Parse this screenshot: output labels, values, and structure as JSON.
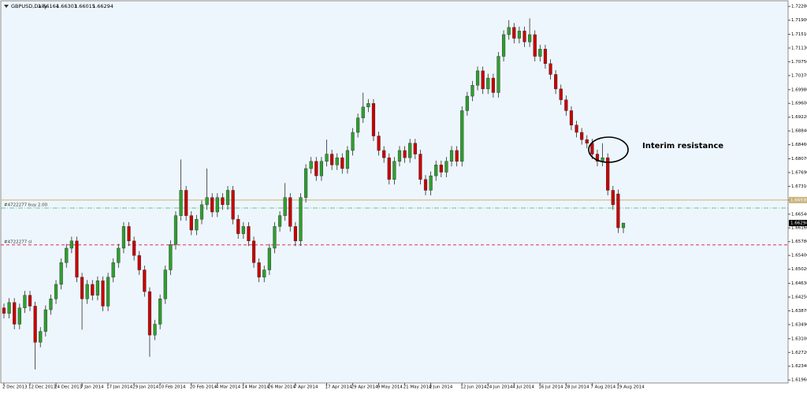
{
  "chart_data": {
    "type": "candlestick",
    "title": "GBPUSD,Daily",
    "annotation": "Interim resistance",
    "up_color": "#2f9e2f",
    "down_color": "#c80000",
    "categories": [
      "2 Dec 2013",
      null,
      null,
      null,
      null,
      "12 Dec 2013",
      null,
      null,
      null,
      null,
      "24 Dec 2013",
      null,
      null,
      null,
      null,
      "7 Jan 2014",
      null,
      null,
      null,
      null,
      "17 Jan 2014",
      null,
      null,
      null,
      null,
      "29 Jan 2014",
      null,
      null,
      null,
      null,
      "10 Feb 2014",
      null,
      null,
      null,
      null,
      null,
      "20 Feb 2014",
      null,
      null,
      null,
      null,
      "4 Mar 2014",
      null,
      null,
      null,
      null,
      "14 Mar 2014",
      null,
      null,
      null,
      null,
      "26 Mar 2014",
      null,
      null,
      null,
      null,
      "7 Apr 2014",
      null,
      null,
      null,
      null,
      null,
      "17 Apr 2014",
      null,
      null,
      null,
      null,
      "29 Apr 2014",
      null,
      null,
      null,
      null,
      "9 May 2014",
      null,
      null,
      null,
      null,
      "21 May 2014",
      null,
      null,
      null,
      null,
      "2 Jun 2014",
      null,
      null,
      null,
      null,
      null,
      "12 Jun 2014",
      null,
      null,
      null,
      null,
      "24 Jun 2014",
      null,
      null,
      null,
      null,
      "4 Jul 2014",
      null,
      null,
      null,
      null,
      "16 Jul 2014",
      null,
      null,
      null,
      null,
      "28 Jul 2014",
      null,
      null,
      null,
      null,
      "7 Aug 2014",
      null,
      null,
      null,
      null,
      "19 Aug 2014",
      null
    ],
    "open": [
      1.6395,
      1.638,
      1.641,
      1.635,
      1.6395,
      1.643,
      1.64,
      1.63,
      1.633,
      1.639,
      1.642,
      1.646,
      1.652,
      1.656,
      1.658,
      1.648,
      1.642,
      1.646,
      1.643,
      1.647,
      1.64,
      1.648,
      1.652,
      1.656,
      1.662,
      1.658,
      1.654,
      1.65,
      1.644,
      1.632,
      1.635,
      1.642,
      1.65,
      1.657,
      1.665,
      1.672,
      1.665,
      1.661,
      1.664,
      1.668,
      1.67,
      1.666,
      1.67,
      1.668,
      1.672,
      1.664,
      1.66,
      1.662,
      1.658,
      1.652,
      1.648,
      1.65,
      1.656,
      1.662,
      1.665,
      1.67,
      1.662,
      1.658,
      1.67,
      1.678,
      1.68,
      1.676,
      1.68,
      1.682,
      1.679,
      1.681,
      1.678,
      1.683,
      1.688,
      1.692,
      1.695,
      1.696,
      1.687,
      1.683,
      1.681,
      1.675,
      1.68,
      1.683,
      1.681,
      1.685,
      1.682,
      1.675,
      1.672,
      1.676,
      1.679,
      1.677,
      1.68,
      1.683,
      1.68,
      1.694,
      1.698,
      1.701,
      1.705,
      1.7,
      1.703,
      1.699,
      1.709,
      1.715,
      1.717,
      1.714,
      1.716,
      1.713,
      1.715,
      1.709,
      1.711,
      1.707,
      1.704,
      1.7,
      1.697,
      1.694,
      1.69,
      1.688,
      1.686,
      1.685,
      1.682,
      1.68,
      1.681,
      1.672,
      1.671,
      1.66164
    ],
    "high": [
      1.6407,
      1.6422,
      1.6422,
      1.6407,
      1.6442,
      1.6442,
      1.6412,
      1.6342,
      1.6402,
      1.6432,
      1.6472,
      1.6532,
      1.6572,
      1.6592,
      1.6592,
      1.6492,
      1.6472,
      1.6472,
      1.6482,
      1.6482,
      1.6492,
      1.6532,
      1.6572,
      1.6632,
      1.6632,
      1.6592,
      1.6552,
      1.6512,
      1.6452,
      1.6362,
      1.6432,
      1.6512,
      1.6582,
      1.6662,
      1.6805,
      1.6732,
      1.6662,
      1.6652,
      1.6692,
      1.678,
      1.6712,
      1.6712,
      1.6712,
      1.6732,
      1.6732,
      1.6652,
      1.6632,
      1.6632,
      1.6592,
      1.6532,
      1.6512,
      1.6572,
      1.6632,
      1.6662,
      1.674,
      1.6712,
      1.6632,
      1.6712,
      1.6792,
      1.6812,
      1.6812,
      1.6812,
      1.686,
      1.6832,
      1.6822,
      1.6822,
      1.6842,
      1.6892,
      1.6932,
      1.699,
      1.6972,
      1.6972,
      1.6882,
      1.6842,
      1.6822,
      1.6812,
      1.6842,
      1.6842,
      1.6862,
      1.6862,
      1.6832,
      1.6762,
      1.6772,
      1.6802,
      1.6802,
      1.6812,
      1.6842,
      1.6842,
      1.6952,
      1.6992,
      1.7022,
      1.7062,
      1.7062,
      1.7042,
      1.7042,
      1.7102,
      1.7162,
      1.719,
      1.7182,
      1.7172,
      1.7172,
      1.7195,
      1.7162,
      1.7122,
      1.7122,
      1.7082,
      1.7052,
      1.7012,
      1.6982,
      1.6952,
      1.6912,
      1.6892,
      1.6872,
      1.6862,
      1.6832,
      1.685,
      1.6822,
      1.6732,
      1.6722,
      1.66303
    ],
    "low": [
      1.6366,
      1.6366,
      1.6336,
      1.6336,
      1.6381,
      1.6386,
      1.6225,
      1.6286,
      1.6316,
      1.6376,
      1.6406,
      1.6446,
      1.6506,
      1.6546,
      1.6466,
      1.6335,
      1.6406,
      1.6416,
      1.6416,
      1.6386,
      1.6386,
      1.6466,
      1.6506,
      1.6546,
      1.6566,
      1.6526,
      1.6486,
      1.6426,
      1.626,
      1.6306,
      1.6336,
      1.6406,
      1.6486,
      1.6556,
      1.6636,
      1.6636,
      1.6596,
      1.6596,
      1.6626,
      1.6666,
      1.6646,
      1.6646,
      1.6666,
      1.6666,
      1.6626,
      1.6586,
      1.6586,
      1.6566,
      1.6506,
      1.6466,
      1.6466,
      1.6486,
      1.6546,
      1.6606,
      1.6636,
      1.6606,
      1.6566,
      1.6566,
      1.6686,
      1.6766,
      1.6746,
      1.6746,
      1.6786,
      1.6776,
      1.6776,
      1.6766,
      1.6766,
      1.6816,
      1.6866,
      1.6906,
      1.6936,
      1.6856,
      1.6816,
      1.6796,
      1.6736,
      1.6736,
      1.6786,
      1.6796,
      1.6796,
      1.6806,
      1.6736,
      1.6706,
      1.6706,
      1.6746,
      1.6756,
      1.6756,
      1.6786,
      1.6786,
      1.6786,
      1.6926,
      1.6966,
      1.6996,
      1.6986,
      1.6986,
      1.6976,
      1.6976,
      1.7076,
      1.7136,
      1.7126,
      1.7126,
      1.7116,
      1.7116,
      1.7076,
      1.7076,
      1.7056,
      1.7026,
      1.6986,
      1.6956,
      1.6926,
      1.6886,
      1.6866,
      1.6846,
      1.6836,
      1.6806,
      1.6786,
      1.6786,
      1.6706,
      1.6666,
      1.6602,
      1.66015
    ],
    "close": [
      1.638,
      1.641,
      1.635,
      1.6395,
      1.643,
      1.64,
      1.63,
      1.633,
      1.639,
      1.642,
      1.646,
      1.652,
      1.656,
      1.658,
      1.648,
      1.642,
      1.646,
      1.643,
      1.647,
      1.64,
      1.648,
      1.652,
      1.656,
      1.662,
      1.658,
      1.654,
      1.65,
      1.644,
      1.632,
      1.635,
      1.642,
      1.65,
      1.657,
      1.665,
      1.672,
      1.665,
      1.661,
      1.664,
      1.668,
      1.67,
      1.666,
      1.67,
      1.668,
      1.672,
      1.664,
      1.66,
      1.662,
      1.658,
      1.652,
      1.648,
      1.65,
      1.656,
      1.662,
      1.665,
      1.67,
      1.662,
      1.658,
      1.67,
      1.678,
      1.68,
      1.676,
      1.68,
      1.682,
      1.679,
      1.681,
      1.678,
      1.683,
      1.688,
      1.692,
      1.695,
      1.696,
      1.687,
      1.683,
      1.681,
      1.675,
      1.68,
      1.683,
      1.681,
      1.685,
      1.682,
      1.675,
      1.672,
      1.676,
      1.679,
      1.677,
      1.68,
      1.683,
      1.68,
      1.694,
      1.698,
      1.701,
      1.705,
      1.7,
      1.703,
      1.699,
      1.709,
      1.715,
      1.717,
      1.714,
      1.716,
      1.713,
      1.715,
      1.709,
      1.711,
      1.707,
      1.704,
      1.7,
      1.697,
      1.694,
      1.69,
      1.688,
      1.686,
      1.685,
      1.682,
      1.68,
      1.681,
      1.672,
      1.668,
      1.66164,
      1.66294
    ],
    "ylim": [
      1.6192,
      1.7237
    ],
    "yticks": [
      {
        "value": 1.7228,
        "label": "1.72280"
      },
      {
        "value": 1.719,
        "label": "1.71900"
      },
      {
        "value": 1.7151,
        "label": "1.71510"
      },
      {
        "value": 1.7113,
        "label": "1.71130"
      },
      {
        "value": 1.7075,
        "label": "1.70750"
      },
      {
        "value": 1.7037,
        "label": "1.70370"
      },
      {
        "value": 1.6998,
        "label": "1.69980"
      },
      {
        "value": 1.696,
        "label": "1.69600"
      },
      {
        "value": 1.6922,
        "label": "1.69220"
      },
      {
        "value": 1.6884,
        "label": "1.68840"
      },
      {
        "value": 1.6846,
        "label": "1.68460"
      },
      {
        "value": 1.6807,
        "label": "1.68070"
      },
      {
        "value": 1.6769,
        "label": "1.67690"
      },
      {
        "value": 1.6731,
        "label": "1.67310"
      },
      {
        "value": 1.6693,
        "label": "1.66930"
      },
      {
        "value": 1.6654,
        "label": "1.66540"
      },
      {
        "value": 1.6616,
        "label": "1.66160"
      },
      {
        "value": 1.6578,
        "label": "1.65780"
      },
      {
        "value": 1.654,
        "label": "1.65400"
      },
      {
        "value": 1.6502,
        "label": "1.65020"
      },
      {
        "value": 1.6463,
        "label": "1.64630"
      },
      {
        "value": 1.6425,
        "label": "1.64250"
      },
      {
        "value": 1.6387,
        "label": "1.63870"
      },
      {
        "value": 1.6349,
        "label": "1.63490"
      },
      {
        "value": 1.631,
        "label": "1.63100"
      },
      {
        "value": 1.6272,
        "label": "1.62720"
      },
      {
        "value": 1.6234,
        "label": "1.62340"
      },
      {
        "value": 1.6196,
        "label": "1.61960"
      }
    ],
    "price_line": {
      "value": 1.6693,
      "label": "1.66930",
      "color": "#c8b27a"
    },
    "levels": [
      {
        "name": "#4722277 buy 2.00",
        "value": 1.6671,
        "color": "#3cb371"
      },
      {
        "name": "#4722277 sl",
        "value": 1.6569,
        "color": "#dc143c"
      }
    ]
  }
}
